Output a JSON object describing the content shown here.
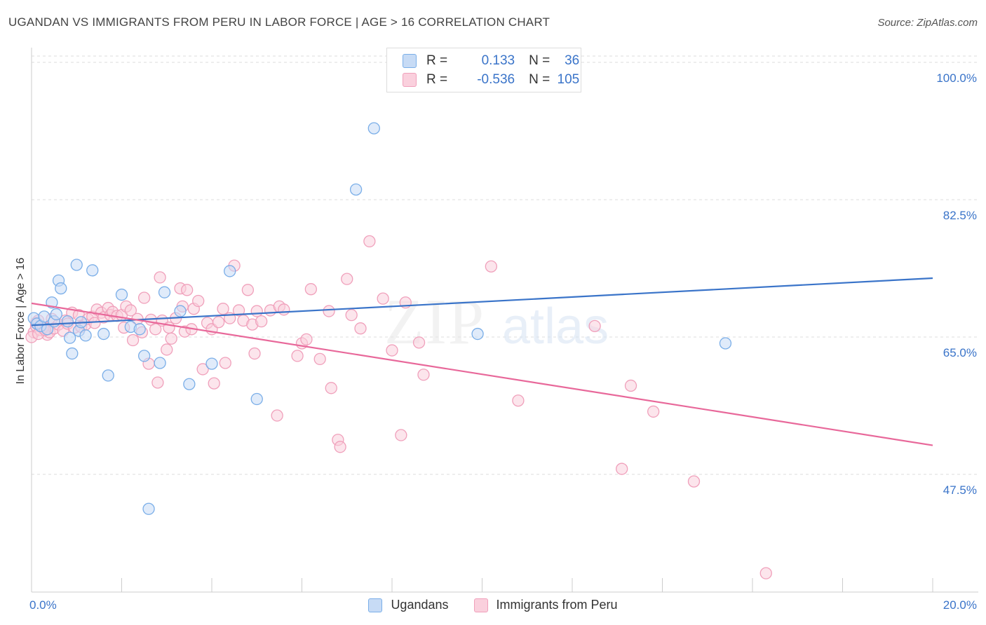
{
  "title": "UGANDAN VS IMMIGRANTS FROM PERU IN LABOR FORCE | AGE > 16 CORRELATION CHART",
  "source": "Source: ZipAtlas.com",
  "watermark": {
    "zip": "ZIP",
    "atlas": "atlas"
  },
  "legend_top": {
    "rows": [
      {
        "r_label": "R =",
        "r_value": "0.133",
        "n_label": "N =",
        "n_value": "36",
        "color": "#7aaee8",
        "fill": "#c7dbf5"
      },
      {
        "r_label": "R =",
        "r_value": "-0.536",
        "n_label": "N =",
        "n_value": "105",
        "color": "#f0a0bb",
        "fill": "#fad0dd"
      }
    ]
  },
  "chart_data": {
    "type": "scatter",
    "title": "UGANDAN VS IMMIGRANTS FROM PERU IN LABOR FORCE | AGE > 16 CORRELATION CHART",
    "xlabel": "",
    "ylabel": "In Labor Force | Age > 16",
    "xlim": [
      0,
      20
    ],
    "ylim": [
      32.5,
      101.7
    ],
    "x_tick_labels": [
      "0.0%",
      "20.0%"
    ],
    "y_ticks": [
      100.0,
      82.5,
      65.0,
      47.5
    ],
    "y_tick_labels": [
      "100.0%",
      "82.5%",
      "65.0%",
      "47.5%"
    ],
    "grid": true,
    "legend_position": "bottom",
    "series": [
      {
        "name": "Ugandans",
        "color": "#3a74c9",
        "marker_fill": "#c7dbf5",
        "marker_edge": "#7aaee8",
        "trend": {
          "x": [
            0.0,
            20.0
          ],
          "y": [
            66.5,
            72.5
          ]
        },
        "points": [
          [
            0.05,
            67.4
          ],
          [
            0.12,
            66.7
          ],
          [
            0.2,
            66.4
          ],
          [
            0.28,
            67.6
          ],
          [
            0.35,
            66.0
          ],
          [
            0.45,
            69.4
          ],
          [
            0.5,
            67.0
          ],
          [
            0.55,
            67.9
          ],
          [
            0.6,
            72.2
          ],
          [
            0.65,
            71.2
          ],
          [
            0.8,
            67.0
          ],
          [
            0.85,
            64.9
          ],
          [
            0.9,
            62.9
          ],
          [
            1.0,
            74.2
          ],
          [
            1.05,
            65.8
          ],
          [
            1.1,
            66.9
          ],
          [
            1.2,
            65.2
          ],
          [
            1.35,
            73.5
          ],
          [
            1.6,
            65.4
          ],
          [
            1.7,
            60.1
          ],
          [
            2.0,
            70.4
          ],
          [
            2.2,
            66.3
          ],
          [
            2.4,
            66.0
          ],
          [
            2.5,
            62.6
          ],
          [
            2.6,
            43.1
          ],
          [
            2.85,
            61.7
          ],
          [
            2.95,
            70.7
          ],
          [
            3.3,
            68.3
          ],
          [
            3.5,
            59.0
          ],
          [
            4.0,
            61.6
          ],
          [
            4.4,
            73.4
          ],
          [
            5.0,
            57.1
          ],
          [
            7.2,
            83.8
          ],
          [
            7.6,
            91.6
          ],
          [
            9.9,
            65.4
          ],
          [
            15.4,
            64.2
          ]
        ]
      },
      {
        "name": "Immigrants from Peru",
        "color": "#e8689a",
        "marker_fill": "#fad0dd",
        "marker_edge": "#f0a0bb",
        "trend": {
          "x": [
            0.0,
            20.0
          ],
          "y": [
            69.3,
            51.2
          ]
        },
        "points": [
          [
            0.05,
            65.6
          ],
          [
            0.1,
            66.4
          ],
          [
            0.15,
            67.1
          ],
          [
            0.2,
            65.9
          ],
          [
            0.3,
            66.2
          ],
          [
            0.35,
            65.3
          ],
          [
            0.4,
            65.6
          ],
          [
            0.45,
            67.3
          ],
          [
            0.5,
            66.1
          ],
          [
            0.6,
            66.6
          ],
          [
            0.7,
            65.8
          ],
          [
            0.75,
            67.1
          ],
          [
            0.8,
            66.7
          ],
          [
            0.9,
            68.1
          ],
          [
            0.95,
            66.2
          ],
          [
            1.05,
            67.8
          ],
          [
            1.1,
            66.3
          ],
          [
            1.2,
            66.6
          ],
          [
            1.25,
            67.3
          ],
          [
            1.35,
            67.6
          ],
          [
            1.4,
            66.8
          ],
          [
            1.45,
            68.5
          ],
          [
            1.55,
            68.1
          ],
          [
            1.6,
            67.5
          ],
          [
            1.7,
            68.7
          ],
          [
            1.75,
            67.8
          ],
          [
            1.8,
            68.2
          ],
          [
            1.9,
            67.7
          ],
          [
            2.0,
            67.8
          ],
          [
            2.05,
            66.2
          ],
          [
            2.1,
            68.9
          ],
          [
            2.2,
            68.4
          ],
          [
            2.25,
            64.6
          ],
          [
            2.35,
            67.3
          ],
          [
            2.45,
            65.6
          ],
          [
            2.5,
            70.0
          ],
          [
            2.6,
            61.6
          ],
          [
            2.65,
            67.2
          ],
          [
            2.75,
            66.0
          ],
          [
            2.8,
            59.2
          ],
          [
            2.85,
            72.6
          ],
          [
            2.9,
            67.1
          ],
          [
            3.0,
            63.4
          ],
          [
            3.05,
            66.2
          ],
          [
            3.1,
            64.8
          ],
          [
            3.2,
            67.4
          ],
          [
            3.3,
            71.2
          ],
          [
            3.35,
            68.9
          ],
          [
            3.4,
            65.7
          ],
          [
            3.45,
            71.0
          ],
          [
            3.55,
            66.0
          ],
          [
            3.6,
            68.6
          ],
          [
            3.7,
            69.6
          ],
          [
            3.8,
            60.9
          ],
          [
            3.9,
            66.8
          ],
          [
            4.0,
            66.0
          ],
          [
            4.05,
            59.1
          ],
          [
            4.15,
            66.9
          ],
          [
            4.25,
            68.6
          ],
          [
            4.3,
            61.7
          ],
          [
            4.4,
            67.4
          ],
          [
            4.5,
            74.1
          ],
          [
            4.6,
            68.4
          ],
          [
            4.7,
            67.1
          ],
          [
            4.8,
            71.0
          ],
          [
            4.9,
            66.6
          ],
          [
            4.95,
            62.9
          ],
          [
            5.0,
            68.3
          ],
          [
            5.1,
            67.0
          ],
          [
            5.3,
            68.4
          ],
          [
            5.45,
            55.0
          ],
          [
            5.5,
            68.9
          ],
          [
            5.6,
            68.5
          ],
          [
            5.9,
            62.6
          ],
          [
            6.0,
            64.2
          ],
          [
            6.1,
            64.7
          ],
          [
            6.2,
            71.1
          ],
          [
            6.4,
            62.2
          ],
          [
            6.6,
            68.3
          ],
          [
            6.65,
            58.5
          ],
          [
            6.8,
            51.9
          ],
          [
            6.85,
            51.0
          ],
          [
            7.0,
            72.4
          ],
          [
            7.1,
            67.8
          ],
          [
            7.3,
            66.1
          ],
          [
            7.5,
            77.2
          ],
          [
            7.8,
            69.9
          ],
          [
            8.0,
            63.3
          ],
          [
            8.2,
            52.5
          ],
          [
            8.3,
            69.4
          ],
          [
            8.6,
            64.3
          ],
          [
            8.7,
            60.2
          ],
          [
            10.2,
            74.0
          ],
          [
            10.8,
            56.9
          ],
          [
            12.5,
            66.4
          ],
          [
            13.1,
            48.2
          ],
          [
            13.3,
            58.8
          ],
          [
            13.8,
            55.5
          ],
          [
            14.7,
            46.6
          ],
          [
            16.3,
            34.9
          ],
          [
            0.0,
            65.0
          ],
          [
            0.1,
            66.8
          ],
          [
            0.15,
            65.4
          ],
          [
            0.25,
            66.2
          ],
          [
            0.3,
            65.9
          ]
        ]
      }
    ]
  }
}
